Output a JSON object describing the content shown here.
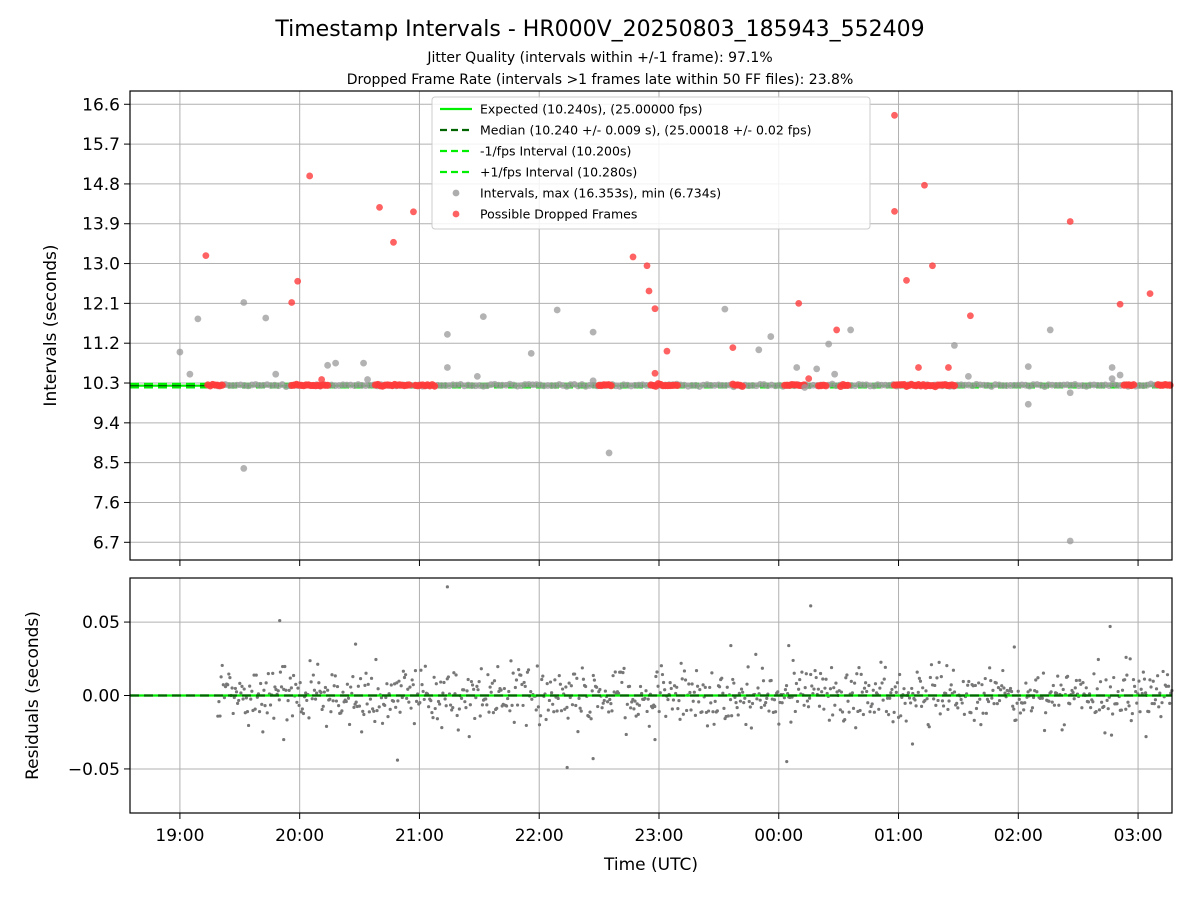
{
  "title": "Timestamp Intervals - HR000V_20250803_185943_552409",
  "subtitle1": "Jitter Quality (intervals within +/-1 frame): 97.1%",
  "subtitle2": "Dropped Frame Rate (intervals >1 frames late within 50 FF files): 23.8%",
  "colors": {
    "expected": "#00ee00",
    "median": "#006400",
    "interval_bounds": "#00ee00",
    "intervals": "#999999",
    "dropped": "#ff3b3b",
    "residuals": "#777777",
    "grid": "#b0b0b0"
  },
  "chart_data": [
    {
      "type": "scatter",
      "ylabel": "Intervals (seconds)",
      "ylim": [
        6.3,
        16.9
      ],
      "yticks": [
        6.7,
        7.6,
        8.5,
        9.4,
        10.3,
        11.2,
        12.1,
        13.0,
        13.9,
        14.8,
        15.7,
        16.6
      ],
      "ytick_labels": [
        "6.7",
        "7.6",
        "8.5",
        "9.4",
        "10.3",
        "11.2",
        "12.1",
        "13.0",
        "13.9",
        "14.8",
        "15.7",
        "16.6"
      ],
      "xlim": [
        "18:35",
        "03:17"
      ],
      "grid": true,
      "legend_position": "top-center",
      "lines": [
        {
          "name": "Expected (10.240s), (25.00000 fps)",
          "y": 10.24,
          "style": "solid",
          "color_key": "expected"
        },
        {
          "name": "Median (10.240 +/- 0.009 s), (25.00018 +/- 0.02 fps)",
          "y": 10.24,
          "style": "dashed",
          "color_key": "median"
        },
        {
          "name": "-1/fps Interval (10.200s)",
          "y": 10.2,
          "style": "dashed",
          "color_key": "interval_bounds"
        },
        {
          "name": "+1/fps Interval (10.280s)",
          "y": 10.28,
          "style": "dashed",
          "color_key": "interval_bounds"
        }
      ],
      "scatter_series": [
        {
          "name": "Intervals, max (16.353s), min (6.734s)",
          "color_key": "intervals",
          "points": [
            [
              "19:00",
              11.0
            ],
            [
              "19:05",
              10.5
            ],
            [
              "19:09",
              11.75
            ],
            [
              "19:32",
              12.12
            ],
            [
              "19:32",
              8.37
            ],
            [
              "19:43",
              11.77
            ],
            [
              "19:48",
              10.5
            ],
            [
              "20:14",
              10.7
            ],
            [
              "20:18",
              10.75
            ],
            [
              "20:32",
              10.75
            ],
            [
              "20:34",
              10.38
            ],
            [
              "21:14",
              11.4
            ],
            [
              "21:14",
              10.65
            ],
            [
              "21:29",
              10.45
            ],
            [
              "21:32",
              11.8
            ],
            [
              "21:56",
              10.97
            ],
            [
              "22:09",
              11.95
            ],
            [
              "22:27",
              11.45
            ],
            [
              "22:27",
              10.35
            ],
            [
              "22:35",
              8.72
            ],
            [
              "23:33",
              11.97
            ],
            [
              "23:50",
              11.05
            ],
            [
              "23:56",
              11.35
            ],
            [
              "00:09",
              10.65
            ],
            [
              "00:13",
              10.2
            ],
            [
              "00:19",
              10.62
            ],
            [
              "00:25",
              11.18
            ],
            [
              "00:28",
              10.5
            ],
            [
              "00:36",
              11.5
            ],
            [
              "01:28",
              11.15
            ],
            [
              "01:35",
              10.45
            ],
            [
              "02:05",
              10.67
            ],
            [
              "02:05",
              9.82
            ],
            [
              "02:16",
              11.5
            ],
            [
              "02:26",
              10.08
            ],
            [
              "02:26",
              6.73
            ],
            [
              "02:47",
              10.65
            ],
            [
              "02:47",
              10.4
            ],
            [
              "02:51",
              10.48
            ]
          ]
        },
        {
          "name": "Possible Dropped Frames",
          "color_key": "dropped",
          "points": [
            [
              "19:13",
              13.18
            ],
            [
              "19:56",
              12.12
            ],
            [
              "19:59",
              12.6
            ],
            [
              "20:05",
              14.98
            ],
            [
              "20:11",
              10.38
            ],
            [
              "20:40",
              14.27
            ],
            [
              "20:47",
              13.48
            ],
            [
              "20:57",
              14.17
            ],
            [
              "22:54",
              12.95
            ],
            [
              "22:47",
              13.15
            ],
            [
              "22:55",
              12.38
            ],
            [
              "22:58",
              11.98
            ],
            [
              "22:58",
              10.52
            ],
            [
              "23:04",
              11.02
            ],
            [
              "23:37",
              11.1
            ],
            [
              "00:10",
              12.1
            ],
            [
              "00:15",
              10.4
            ],
            [
              "00:29",
              11.5
            ],
            [
              "00:58",
              16.35
            ],
            [
              "00:58",
              14.18
            ],
            [
              "01:04",
              12.62
            ],
            [
              "01:10",
              10.65
            ],
            [
              "01:13",
              14.77
            ],
            [
              "01:17",
              12.95
            ],
            [
              "01:25",
              10.65
            ],
            [
              "01:36",
              11.82
            ],
            [
              "02:26",
              13.95
            ],
            [
              "02:51",
              12.08
            ],
            [
              "03:06",
              12.32
            ]
          ]
        }
      ],
      "dense_band": {
        "y": 10.25,
        "dropped_runs": [
          [
            "19:14",
            "19:22"
          ],
          [
            "19:56",
            "20:15"
          ],
          [
            "20:38",
            "20:55"
          ],
          [
            "20:58",
            "21:08"
          ],
          [
            "22:30",
            "22:37"
          ],
          [
            "22:56",
            "23:10"
          ],
          [
            "23:37",
            "23:42"
          ],
          [
            "00:03",
            "00:13"
          ],
          [
            "00:20",
            "00:24"
          ],
          [
            "00:31",
            "00:35"
          ],
          [
            "00:58",
            "01:28"
          ],
          [
            "02:53",
            "02:58"
          ],
          [
            "03:10",
            "03:17"
          ]
        ]
      }
    },
    {
      "type": "scatter",
      "ylabel": "Residuals (seconds)",
      "xlabel": "Time (UTC)",
      "ylim": [
        -0.08,
        0.08
      ],
      "yticks": [
        -0.05,
        0.0,
        0.05
      ],
      "ytick_labels": [
        "−0.05",
        "0.00",
        "0.05"
      ],
      "xlim": [
        "18:35",
        "03:17"
      ],
      "xticks": [
        "19:00",
        "20:00",
        "21:00",
        "22:00",
        "23:00",
        "00:00",
        "01:00",
        "02:00",
        "03:00"
      ],
      "grid": true,
      "lines": [
        {
          "y": 0.0,
          "style": "solid",
          "color_key": "expected"
        },
        {
          "y": 0.0,
          "style": "dashed",
          "color_key": "median"
        }
      ],
      "residual_spread": 0.01,
      "outliers": [
        [
          "19:50",
          0.051
        ],
        [
          "21:14",
          0.074
        ],
        [
          "20:49",
          -0.044
        ],
        [
          "22:14",
          -0.049
        ],
        [
          "22:27",
          -0.043
        ],
        [
          "00:04",
          -0.045
        ],
        [
          "00:16",
          0.061
        ],
        [
          "02:46",
          0.047
        ],
        [
          "01:07",
          -0.033
        ],
        [
          "19:52",
          -0.03
        ],
        [
          "00:05",
          0.034
        ],
        [
          "23:36",
          0.034
        ],
        [
          "20:28",
          0.035
        ],
        [
          "22:58",
          -0.03
        ],
        [
          "01:58",
          0.033
        ],
        [
          "02:54",
          0.026
        ],
        [
          "03:04",
          -0.028
        ]
      ]
    }
  ],
  "legend": [
    {
      "label": "Expected (10.240s), (25.00000 fps)",
      "kind": "line-solid",
      "color_key": "expected"
    },
    {
      "label": "Median (10.240 +/- 0.009 s), (25.00018 +/- 0.02 fps)",
      "kind": "line-dashed",
      "color_key": "median"
    },
    {
      "label": "-1/fps Interval (10.200s)",
      "kind": "line-dashed",
      "color_key": "interval_bounds"
    },
    {
      "label": "+1/fps Interval (10.280s)",
      "kind": "line-dashed",
      "color_key": "interval_bounds"
    },
    {
      "label": "Intervals, max (16.353s), min (6.734s)",
      "kind": "dot",
      "color_key": "intervals"
    },
    {
      "label": "Possible Dropped Frames",
      "kind": "dot",
      "color_key": "dropped"
    }
  ]
}
